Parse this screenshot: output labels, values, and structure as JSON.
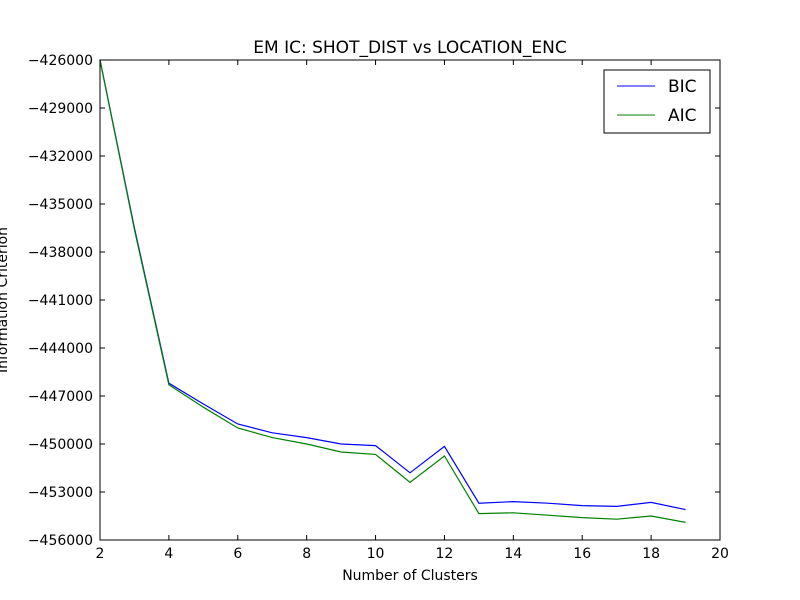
{
  "chart_data": {
    "type": "line",
    "title": "EM IC: SHOT_DIST vs LOCATION_ENC",
    "xlabel": "Number of Clusters",
    "ylabel": "Information Criterion",
    "xlim": [
      2,
      20
    ],
    "ylim": [
      -456000,
      -426000
    ],
    "xticks": [
      2,
      4,
      6,
      8,
      10,
      12,
      14,
      16,
      18,
      20
    ],
    "yticks": [
      -426000,
      -429000,
      -432000,
      -435000,
      -438000,
      -441000,
      -444000,
      -447000,
      -450000,
      -453000,
      -456000
    ],
    "ytick_labels": [
      "−426000",
      "−429000",
      "−432000",
      "−435000",
      "−438000",
      "−441000",
      "−444000",
      "−447000",
      "−450000",
      "−453000",
      "−456000"
    ],
    "grid": false,
    "legend_position": "top-right",
    "series": [
      {
        "name": "BIC",
        "color": "#0000ff",
        "x": [
          2,
          3,
          4,
          5,
          6,
          7,
          8,
          9,
          10,
          11,
          12,
          13,
          14,
          15,
          16,
          17,
          18,
          19
        ],
        "values": [
          -426000,
          -436500,
          -446200,
          -447500,
          -448750,
          -449300,
          -449600,
          -450000,
          -450100,
          -451800,
          -450150,
          -453700,
          -453600,
          -453700,
          -453850,
          -453900,
          -453650,
          -454100
        ]
      },
      {
        "name": "AIC",
        "color": "#008000",
        "x": [
          2,
          3,
          4,
          5,
          6,
          7,
          8,
          9,
          10,
          11,
          12,
          13,
          14,
          15,
          16,
          17,
          18,
          19
        ],
        "values": [
          -426000,
          -436600,
          -446300,
          -447700,
          -449000,
          -449600,
          -450000,
          -450500,
          -450650,
          -452400,
          -450750,
          -454350,
          -454300,
          -454450,
          -454600,
          -454700,
          -454500,
          -454900
        ]
      }
    ]
  }
}
